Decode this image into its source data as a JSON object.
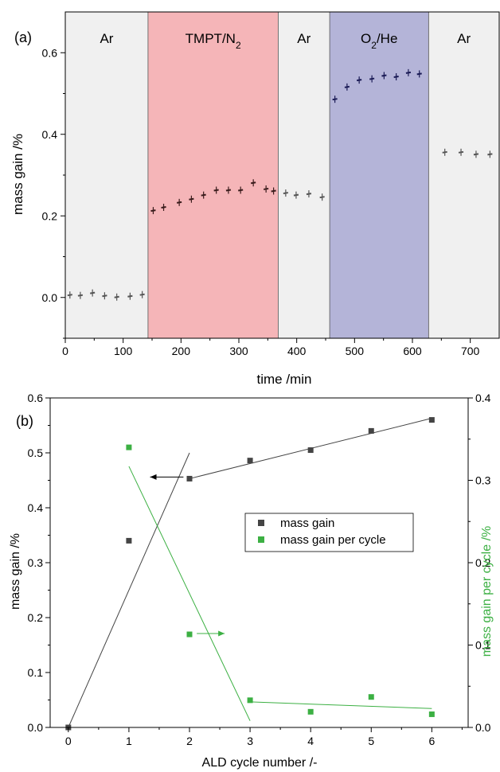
{
  "chart_data": [
    {
      "panel": "(a)",
      "type": "scatter",
      "xlabel": "time /min",
      "ylabel": "mass gain /%",
      "xlim": [
        0,
        750
      ],
      "ylim": [
        -0.1,
        0.7
      ],
      "xticks": [
        "0",
        "100",
        "200",
        "300",
        "400",
        "500",
        "600",
        "700"
      ],
      "yticks": [
        "0.0",
        "0.2",
        "0.4",
        "0.6"
      ],
      "grid": false,
      "regions": [
        {
          "label": "Ar",
          "sub": "",
          "after": "",
          "x0": 0,
          "x1": 143,
          "color": "#f0f0f0"
        },
        {
          "label": "TMPT/N",
          "sub": "2",
          "after": "",
          "x0": 143,
          "x1": 368,
          "color": "#f5b5b8"
        },
        {
          "label": "Ar",
          "sub": "",
          "after": "",
          "x0": 368,
          "x1": 457,
          "color": "#f0f0f0"
        },
        {
          "label": "O",
          "sub": "2",
          "after": "/He",
          "x0": 457,
          "x1": 628,
          "color": "#b4b4d8"
        },
        {
          "label": "Ar",
          "sub": "",
          "after": "",
          "x0": 628,
          "x1": 750,
          "color": "#f0f0f0"
        }
      ],
      "series": [
        {
          "color": "#555555",
          "x": [
            8,
            26,
            47,
            68,
            89,
            112,
            133
          ],
          "y": [
            0.005,
            0.004,
            0.01,
            0.003,
            0.0,
            0.002,
            0.006
          ]
        },
        {
          "color": "#3a1c1c",
          "x": [
            152,
            170,
            197,
            218,
            239,
            261,
            282,
            303,
            325,
            347,
            360
          ],
          "y": [
            0.212,
            0.22,
            0.232,
            0.24,
            0.25,
            0.262,
            0.262,
            0.262,
            0.28,
            0.265,
            0.26
          ]
        },
        {
          "color": "#555555",
          "x": [
            381,
            399,
            421,
            444
          ],
          "y": [
            0.255,
            0.25,
            0.253,
            0.245
          ]
        },
        {
          "color": "#1a1a55",
          "x": [
            466,
            487,
            508,
            530,
            551,
            572,
            593,
            612
          ],
          "y": [
            0.485,
            0.515,
            0.532,
            0.535,
            0.543,
            0.54,
            0.55,
            0.547
          ]
        },
        {
          "color": "#555555",
          "x": [
            656,
            684,
            710,
            734
          ],
          "y": [
            0.355,
            0.355,
            0.35,
            0.35
          ]
        }
      ]
    },
    {
      "panel": "(b)",
      "type": "scatter",
      "xlabel": "ALD cycle number /-",
      "ylabel": "mass gain /%",
      "ylabel_right": "mass gain per cycle /%",
      "xlim": [
        -0.3,
        6.6
      ],
      "ylim": [
        0,
        0.6
      ],
      "ylim_right": [
        0,
        0.4
      ],
      "xticks": [
        "0",
        "1",
        "2",
        "3",
        "4",
        "5",
        "6"
      ],
      "yticks": [
        "0.0",
        "0.1",
        "0.2",
        "0.3",
        "0.4",
        "0.5",
        "0.6"
      ],
      "yticks_right": [
        "0.0",
        "0.1",
        "0.2",
        "0.3",
        "0.4"
      ],
      "grid": false,
      "legend_position": "center-right",
      "series": [
        {
          "name": "mass gain",
          "axis": "left",
          "color": "#444444",
          "x": [
            0,
            1,
            2,
            3,
            4,
            5,
            6
          ],
          "y": [
            0,
            0.34,
            0.453,
            0.486,
            0.505,
            0.54,
            0.56
          ]
        },
        {
          "name": "mass gain per cycle",
          "axis": "right",
          "color": "#3cb043",
          "x": [
            1,
            2,
            3,
            4,
            5,
            6
          ],
          "y": [
            0.34,
            0.113,
            0.033,
            0.019,
            0.037,
            0.016
          ]
        }
      ],
      "fit_lines": [
        {
          "axis": "left",
          "color": "#444444",
          "x": [
            0,
            2
          ],
          "y": [
            0,
            0.5
          ]
        },
        {
          "axis": "left",
          "color": "#444444",
          "x": [
            2,
            6
          ],
          "y": [
            0.453,
            0.563
          ]
        },
        {
          "axis": "right",
          "color": "#3cb043",
          "x": [
            1,
            3
          ],
          "y": [
            0.317,
            0.008
          ]
        },
        {
          "axis": "right",
          "color": "#3cb043",
          "x": [
            3,
            6
          ],
          "y": [
            0.031,
            0.023
          ]
        }
      ],
      "arrows": [
        {
          "axis": "left",
          "direction": "left",
          "color": "#000000",
          "x": [
            1.9,
            1.35
          ],
          "y": [
            0.456,
            0.456
          ]
        },
        {
          "axis": "left",
          "direction": "right",
          "color": "#3cb043",
          "x": [
            2.12,
            2.58
          ],
          "y": [
            0.171,
            0.171
          ]
        }
      ]
    }
  ]
}
